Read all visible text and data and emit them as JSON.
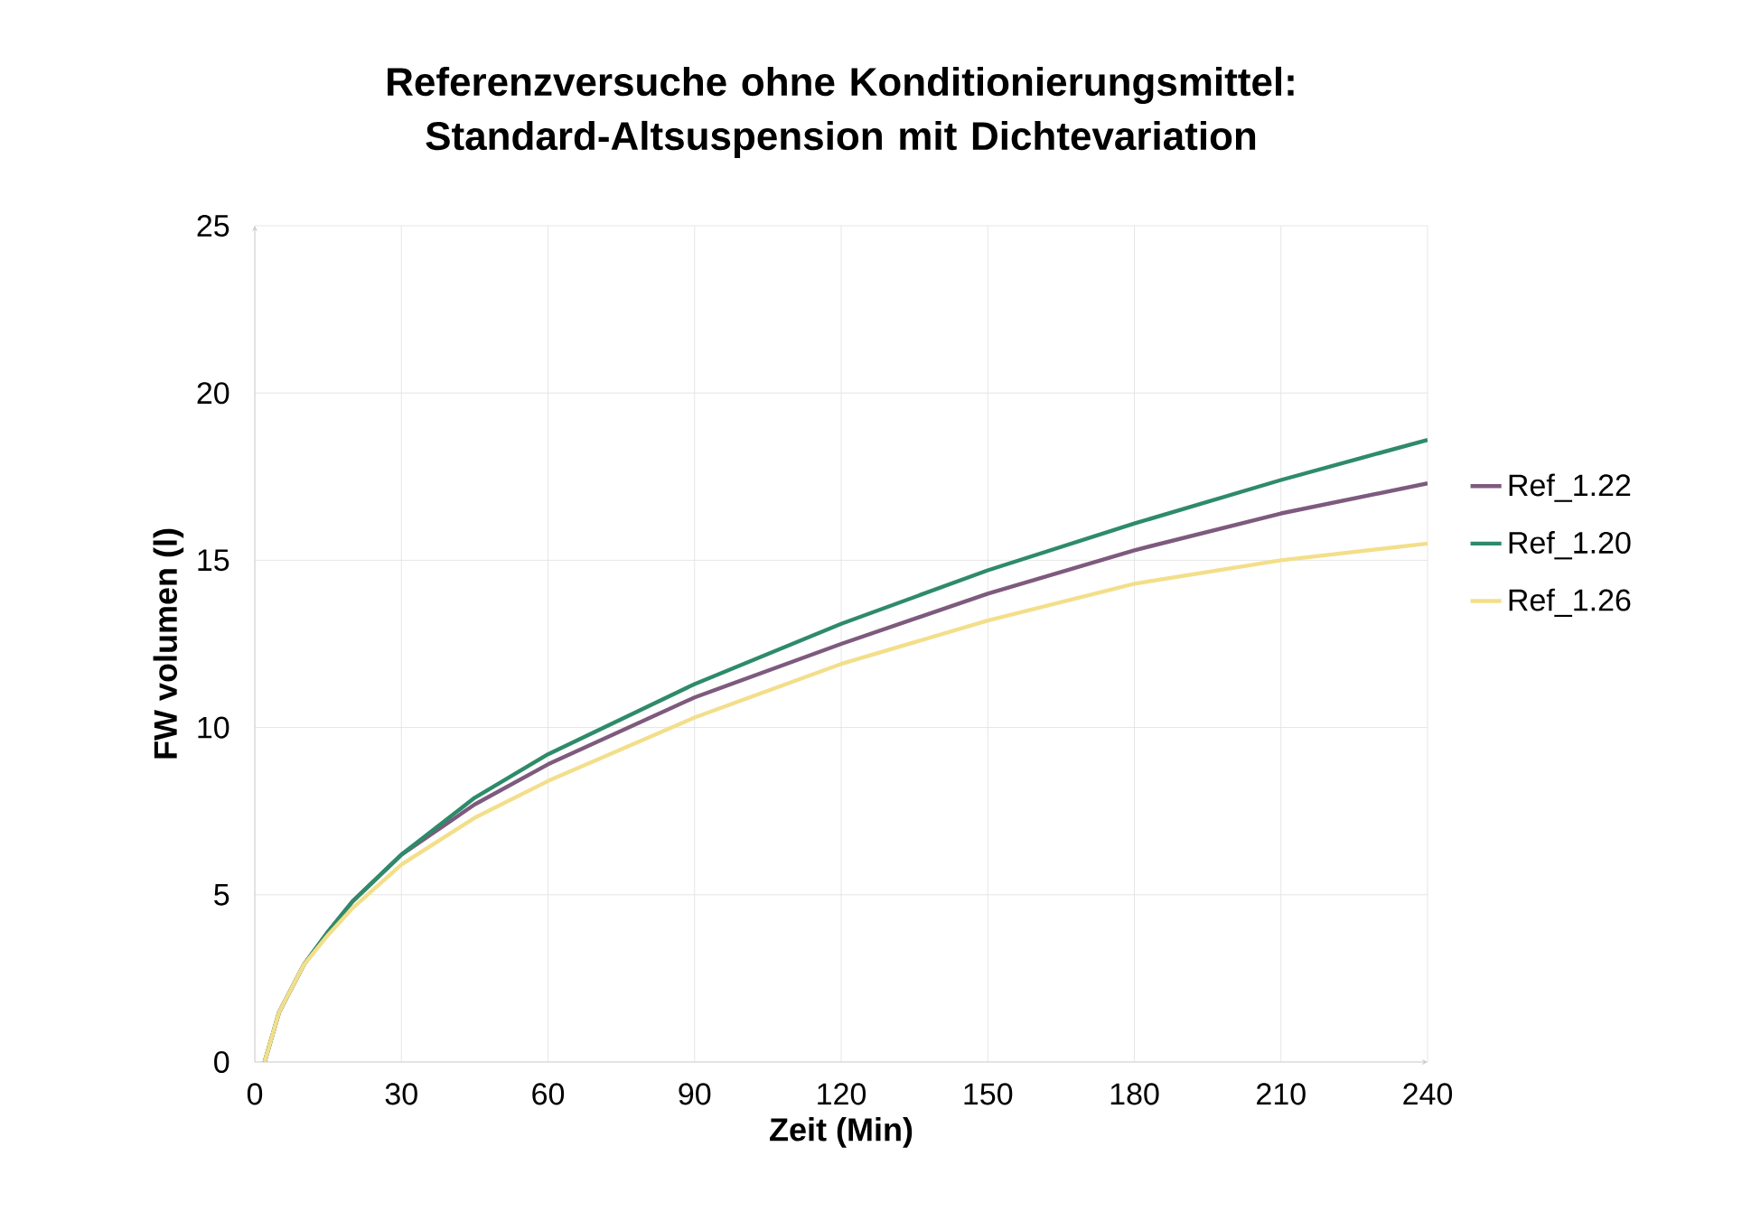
{
  "chart_data": {
    "type": "line",
    "title": "Referenzversuche ohne Konditionierungsmittel: Standard-Altsuspension mit Dichtevariation",
    "xlabel": "Zeit (Min)",
    "ylabel": "FW volumen (l)",
    "x": [
      2,
      5,
      10,
      15,
      20,
      30,
      45,
      60,
      90,
      120,
      150,
      180,
      210,
      240
    ],
    "series": [
      {
        "name": "Ref_1.22",
        "color": "#7e5a7e",
        "values": [
          0,
          1.5,
          2.9,
          3.9,
          4.8,
          6.2,
          7.7,
          8.9,
          10.9,
          12.5,
          14.0,
          15.3,
          16.4,
          17.3
        ]
      },
      {
        "name": "Ref_1.20",
        "color": "#2e8b6a",
        "values": [
          0,
          1.5,
          2.9,
          3.9,
          4.8,
          6.2,
          7.9,
          9.2,
          11.3,
          13.1,
          14.7,
          16.1,
          17.4,
          18.6
        ]
      },
      {
        "name": "Ref_1.26",
        "color": "#f3df8a",
        "values": [
          0,
          1.5,
          2.9,
          3.8,
          4.6,
          5.9,
          7.3,
          8.4,
          10.3,
          11.9,
          13.2,
          14.3,
          15.0,
          15.5
        ]
      }
    ],
    "xlim": [
      0,
      240
    ],
    "xticks": [
      0,
      30,
      60,
      90,
      120,
      150,
      180,
      210,
      240
    ],
    "ylim": [
      0,
      25
    ],
    "yticks": [
      0,
      5,
      10,
      15,
      20,
      25
    ],
    "grid": true,
    "legend": "right",
    "marker": "none",
    "line_style": "solid"
  }
}
